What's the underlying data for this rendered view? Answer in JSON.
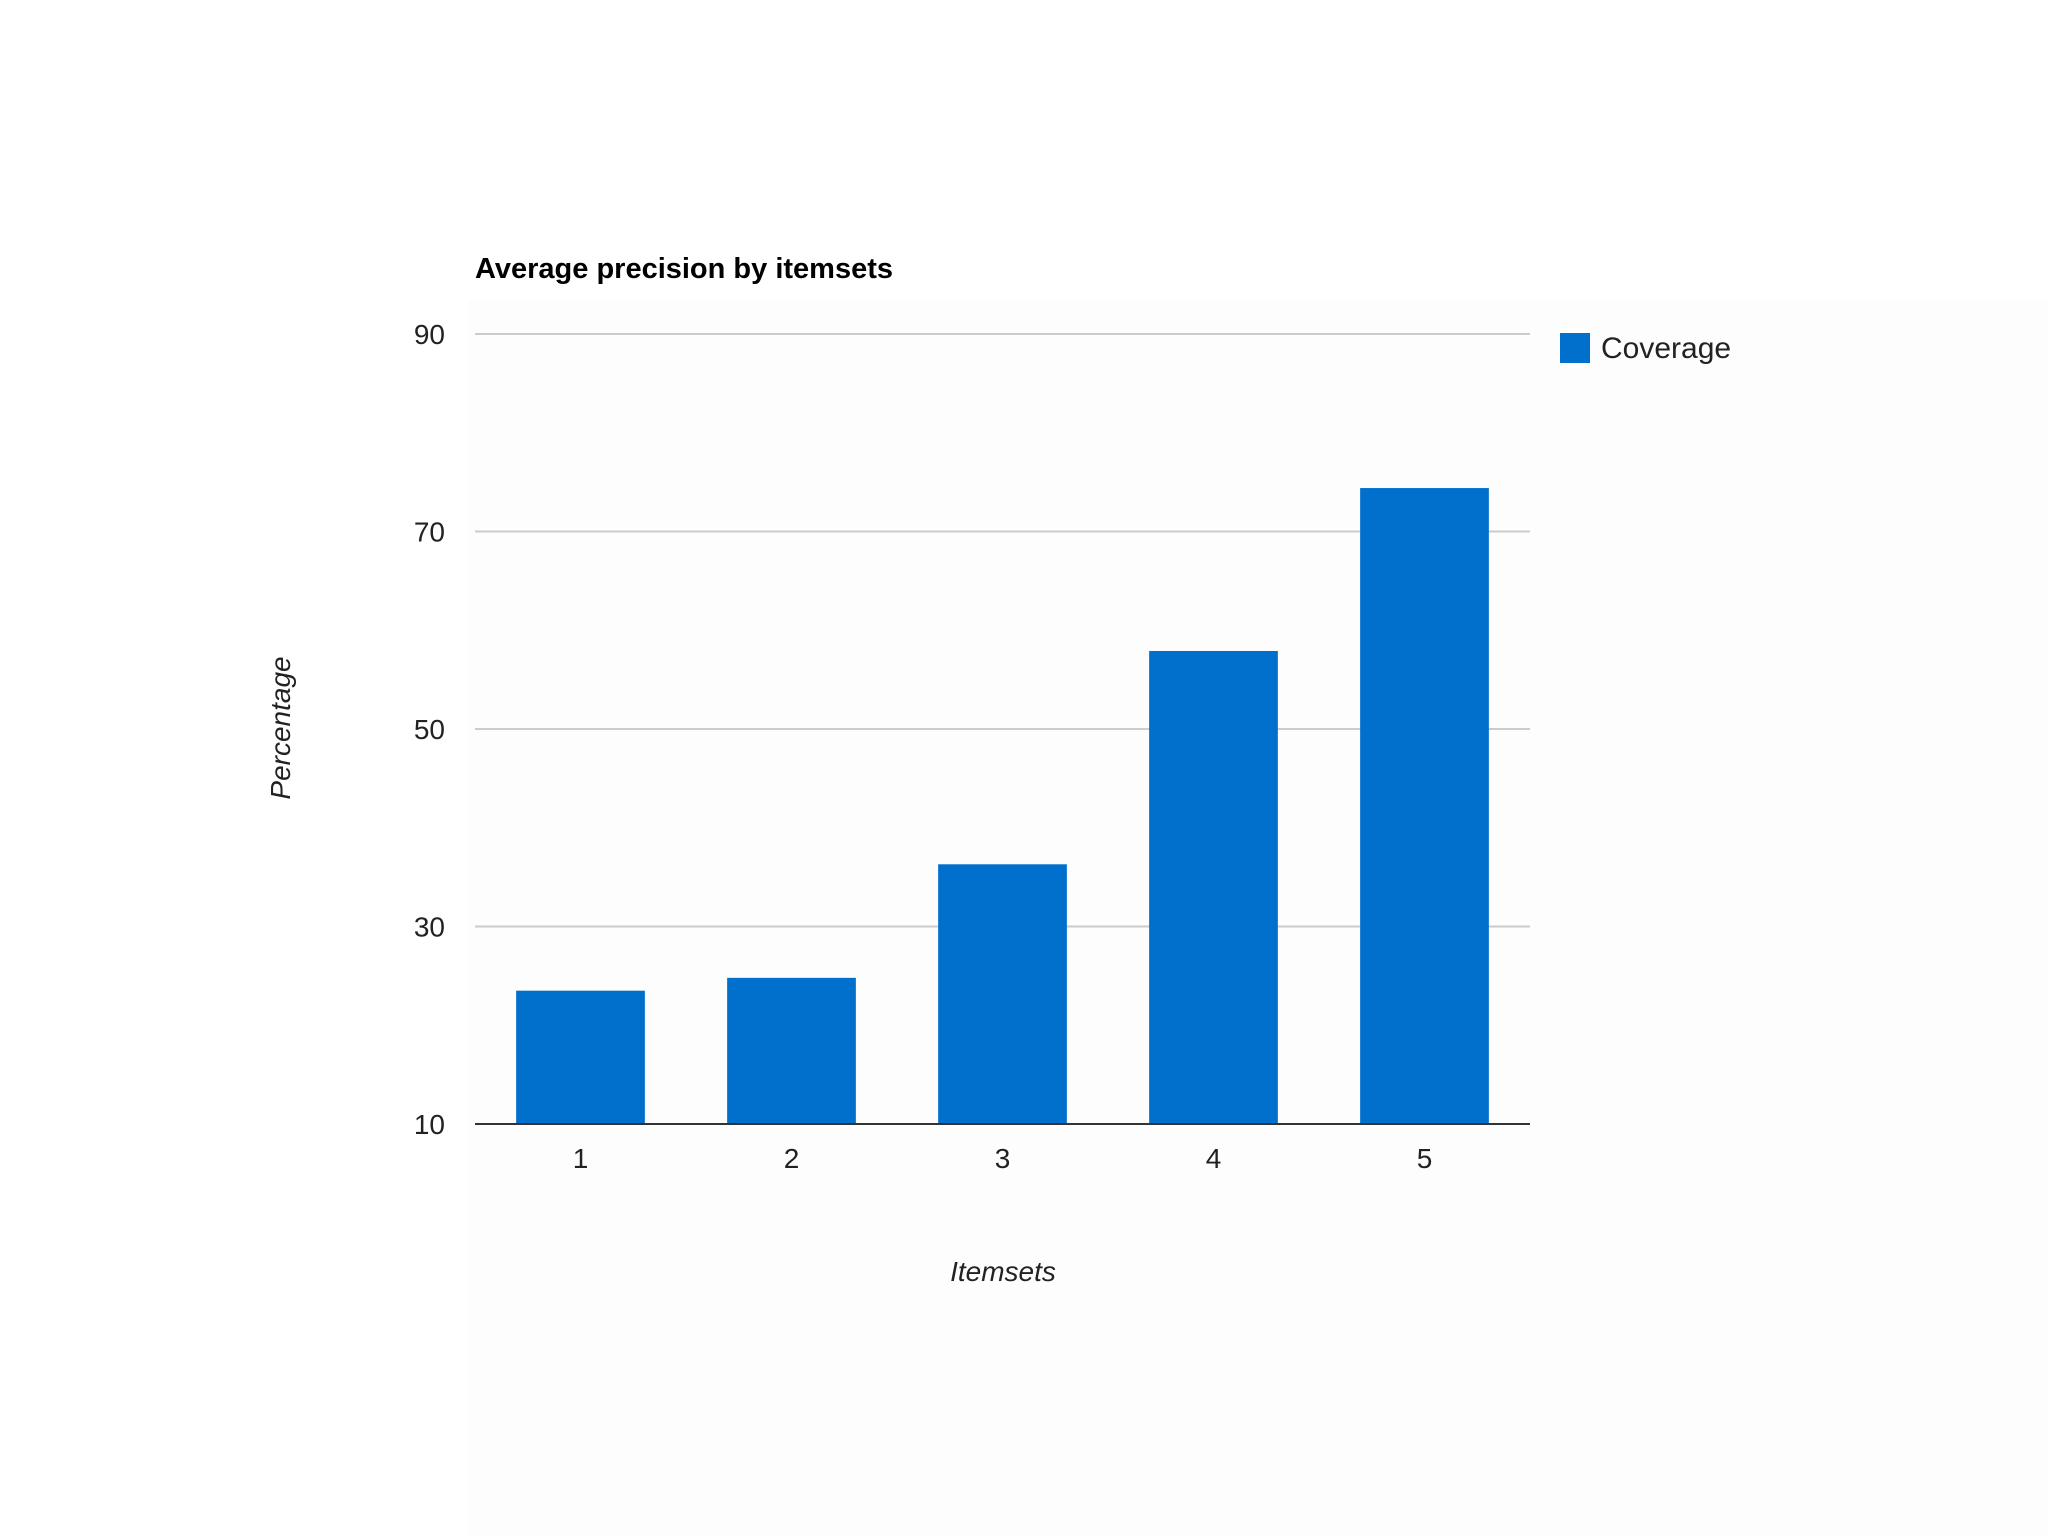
{
  "chart_data": {
    "type": "bar",
    "title": "Average precision by itemsets",
    "xlabel": "Itemsets",
    "ylabel": "Percentage",
    "categories": [
      "1",
      "2",
      "3",
      "4",
      "5"
    ],
    "series": [
      {
        "name": "Coverage",
        "color": "#0070CC",
        "values": [
          23.5,
          24.8,
          36.3,
          57.9,
          74.4
        ]
      }
    ],
    "ylim": [
      10,
      90
    ],
    "yticks": [
      "10",
      "30",
      "50",
      "70",
      "90"
    ],
    "grid": true,
    "legend_position": "right"
  }
}
